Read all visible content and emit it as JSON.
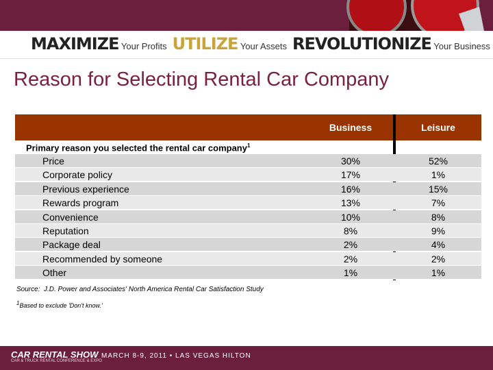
{
  "header": {
    "tagline": [
      {
        "strong": "MAXIMIZE",
        "rest": "Your Profits"
      },
      {
        "strong": "UTILIZE",
        "rest": "Your Assets"
      },
      {
        "strong": "REVOLUTIONIZE",
        "rest": "Your Business"
      }
    ]
  },
  "title": "Reason for Selecting Rental Car Company",
  "table": {
    "columns": [
      "Business",
      "Leisure"
    ],
    "section": "Primary reason you selected the rental car company",
    "section_note": "1",
    "rows": [
      [
        "Price",
        "30%",
        "52%"
      ],
      [
        "Corporate policy",
        "17%",
        "1%"
      ],
      [
        "Previous experience",
        "16%",
        "15%"
      ],
      [
        "Rewards program",
        "13%",
        "7%"
      ],
      [
        "Convenience",
        "10%",
        "8%"
      ],
      [
        "Reputation",
        "8%",
        "9%"
      ],
      [
        "Package deal",
        "2%",
        "4%"
      ],
      [
        "Recommended by someone",
        "2%",
        "2%"
      ],
      [
        "Other",
        "1%",
        "1%"
      ]
    ]
  },
  "notes": {
    "source_label": "Source:",
    "source": "J.D. Power and Associates' North America Rental Car Satisfaction Study",
    "footnote_mark": "1",
    "footnote": "Based to exclude 'Don't know.'"
  },
  "footer": {
    "brand": "CAR RENTAL SHOW",
    "brand_sub": "CAR & TRUCK RENTAL CONFERENCE & EXPO",
    "event": "MARCH 8-9, 2011 • LAS VEGAS HILTON"
  }
}
